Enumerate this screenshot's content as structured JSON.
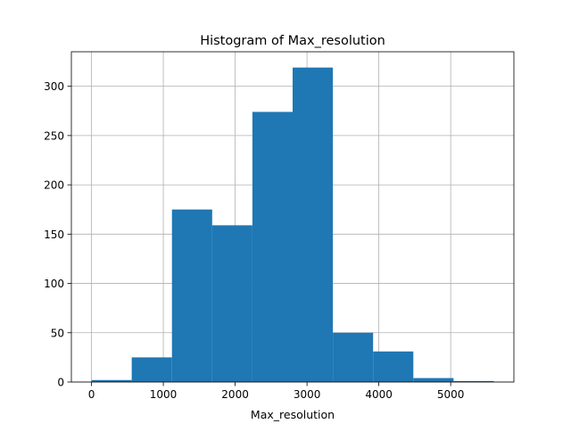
{
  "chart_data": {
    "type": "bar",
    "title": "Histogram of Max_resolution",
    "xlabel": "Max_resolution",
    "ylabel": "",
    "bin_edges": [
      0,
      560,
      1120,
      1680,
      2240,
      2800,
      3360,
      3920,
      4480,
      5040,
      5600
    ],
    "values": [
      2,
      25,
      175,
      159,
      274,
      319,
      50,
      31,
      4,
      1
    ],
    "xlim": [
      -280,
      5880
    ],
    "ylim": [
      0,
      335
    ],
    "xticks": [
      "0",
      "1000",
      "2000",
      "3000",
      "4000",
      "5000"
    ],
    "xtick_values": [
      0,
      1000,
      2000,
      3000,
      4000,
      5000
    ],
    "yticks": [
      "0",
      "50",
      "100",
      "150",
      "200",
      "250",
      "300"
    ],
    "ytick_values": [
      0,
      50,
      100,
      150,
      200,
      250,
      300
    ],
    "grid": true,
    "bar_color": "#1f77b4",
    "grid_color": "#b0b0b0"
  }
}
